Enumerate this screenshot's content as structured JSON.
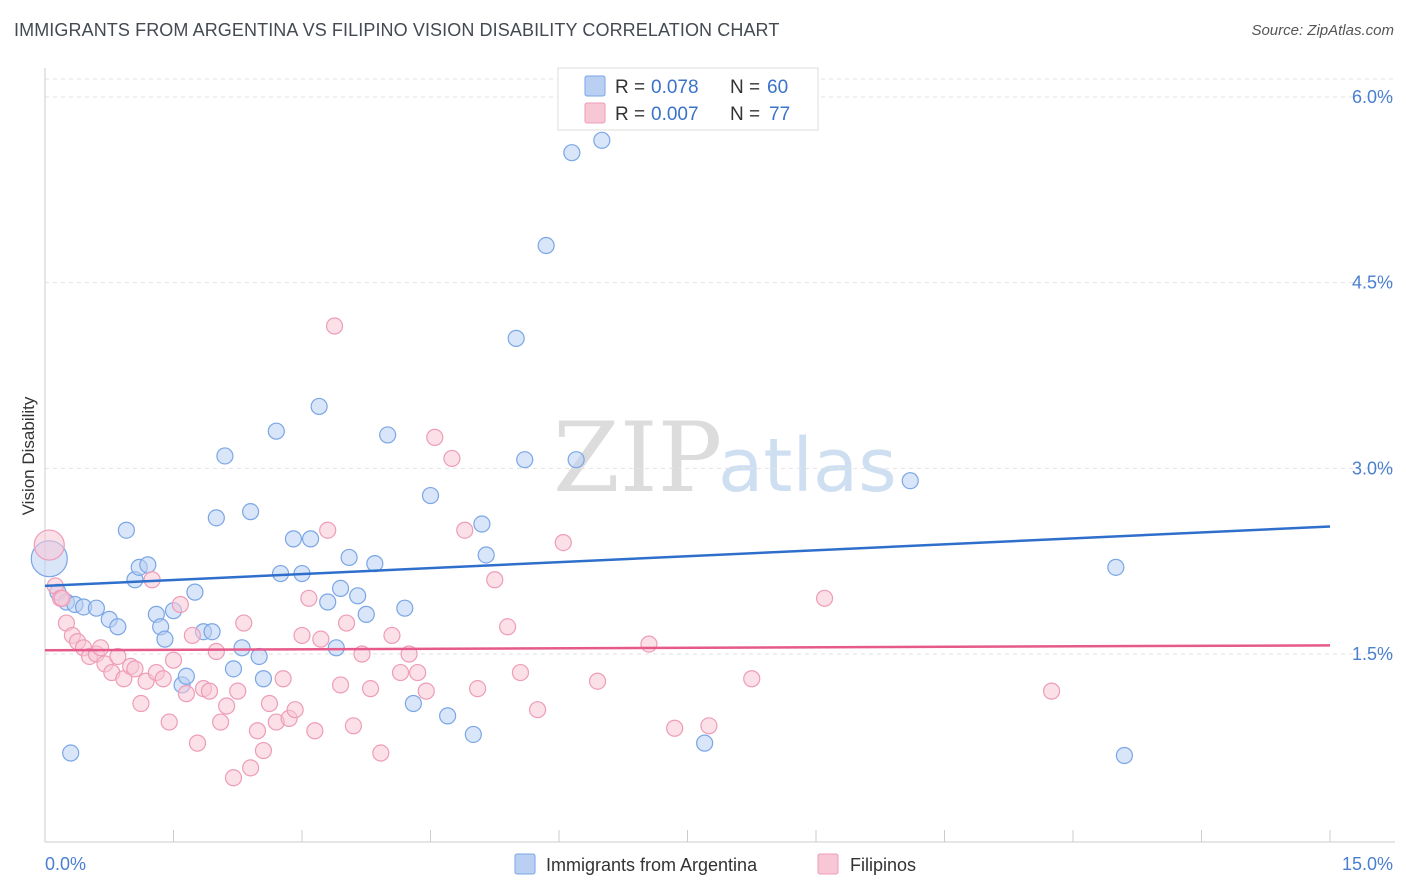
{
  "title": "IMMIGRANTS FROM ARGENTINA VS FILIPINO VISION DISABILITY CORRELATION CHART",
  "source": "Source: ZipAtlas.com",
  "watermark": {
    "zip": "ZIP",
    "atlas": "atlas"
  },
  "chart_data": {
    "type": "scatter",
    "title": "IMMIGRANTS FROM ARGENTINA VS FILIPINO VISION DISABILITY CORRELATION CHART",
    "xlabel": "",
    "ylabel": "Vision Disability",
    "xlim": [
      0,
      15
    ],
    "ylim": [
      0,
      6.2
    ],
    "x_tick_labels": [
      "0.0%",
      "15.0%"
    ],
    "y_ticks": [
      1.5,
      3.0,
      4.5,
      6.0
    ],
    "y_tick_labels": [
      "1.5%",
      "3.0%",
      "4.5%",
      "6.0%"
    ],
    "legend_position": "top-center",
    "series": [
      {
        "name": "Immigrants from Argentina",
        "color": "#7aa6e6",
        "fill": "#b9d0f3",
        "line_color": "#2f6fcc",
        "R": "0.078",
        "N": "60",
        "trend": {
          "x": [
            0,
            15
          ],
          "y": [
            2.05,
            2.53
          ]
        },
        "x": [
          0.05,
          0.15,
          0.25,
          0.35,
          0.45,
          0.6,
          0.75,
          0.85,
          0.95,
          1.05,
          1.1,
          1.2,
          1.3,
          1.35,
          1.4,
          1.5,
          1.6,
          1.65,
          1.75,
          1.85,
          1.95,
          2.0,
          2.1,
          2.2,
          2.3,
          2.4,
          2.5,
          2.55,
          2.7,
          2.75,
          2.9,
          3.0,
          3.1,
          3.2,
          3.3,
          3.4,
          3.45,
          3.55,
          3.65,
          3.75,
          3.85,
          4.0,
          4.2,
          4.3,
          4.5,
          4.7,
          5.0,
          5.1,
          5.15,
          5.5,
          5.6,
          5.85,
          6.15,
          6.2,
          6.5,
          7.7,
          10.1,
          12.5,
          12.6,
          0.3
        ],
        "y": [
          2.27,
          2.0,
          1.92,
          1.9,
          1.88,
          1.87,
          1.78,
          1.72,
          2.5,
          2.1,
          2.2,
          2.22,
          1.82,
          1.72,
          1.62,
          1.85,
          1.25,
          1.32,
          2.0,
          1.68,
          1.68,
          2.6,
          3.1,
          1.38,
          1.55,
          2.65,
          1.48,
          1.3,
          3.3,
          2.15,
          2.43,
          2.15,
          2.43,
          3.5,
          1.92,
          1.55,
          2.03,
          2.28,
          1.97,
          1.82,
          2.23,
          3.27,
          1.87,
          1.1,
          2.78,
          1.0,
          0.85,
          2.55,
          2.3,
          4.05,
          3.07,
          4.8,
          5.55,
          3.07,
          5.65,
          0.78,
          2.9,
          2.2,
          0.68,
          0.7
        ]
      },
      {
        "name": "Filipinos",
        "color": "#ee9cb7",
        "fill": "#f8c7d6",
        "line_color": "#e55a8a",
        "R": "0.007",
        "N": "77",
        "trend": {
          "x": [
            0,
            15
          ],
          "y": [
            1.53,
            1.57
          ]
        },
        "x": [
          0.05,
          0.12,
          0.18,
          0.25,
          0.32,
          0.38,
          0.45,
          0.52,
          0.6,
          0.65,
          0.7,
          0.78,
          0.85,
          0.92,
          1.0,
          1.05,
          1.12,
          1.18,
          1.25,
          1.3,
          1.38,
          1.45,
          1.5,
          1.58,
          1.65,
          1.72,
          1.78,
          1.85,
          1.92,
          2.0,
          2.05,
          2.12,
          2.2,
          2.25,
          2.32,
          2.4,
          2.48,
          2.55,
          2.62,
          2.7,
          2.78,
          2.85,
          2.92,
          3.0,
          3.08,
          3.15,
          3.22,
          3.3,
          3.38,
          3.45,
          3.52,
          3.6,
          3.7,
          3.8,
          3.92,
          4.05,
          4.15,
          4.25,
          4.35,
          4.45,
          4.55,
          4.75,
          4.9,
          5.05,
          5.25,
          5.4,
          5.55,
          5.75,
          6.05,
          6.45,
          7.05,
          7.35,
          7.75,
          8.25,
          9.1,
          11.75,
          0.2
        ],
        "y": [
          2.38,
          2.05,
          1.95,
          1.75,
          1.65,
          1.6,
          1.55,
          1.48,
          1.5,
          1.55,
          1.42,
          1.35,
          1.48,
          1.3,
          1.4,
          1.38,
          1.1,
          1.28,
          2.1,
          1.35,
          1.3,
          0.95,
          1.45,
          1.9,
          1.18,
          1.65,
          0.78,
          1.22,
          1.2,
          1.52,
          0.95,
          1.08,
          0.5,
          1.2,
          1.75,
          0.58,
          0.88,
          0.72,
          1.1,
          0.95,
          1.3,
          0.98,
          1.05,
          1.65,
          1.95,
          0.88,
          1.62,
          2.5,
          4.15,
          1.25,
          1.75,
          0.92,
          1.5,
          1.22,
          0.7,
          1.65,
          1.35,
          1.5,
          1.35,
          1.2,
          3.25,
          3.08,
          2.5,
          1.22,
          2.1,
          1.72,
          1.35,
          1.05,
          2.4,
          1.28,
          1.58,
          0.9,
          0.92,
          1.3,
          1.95,
          1.2,
          1.95
        ]
      }
    ]
  }
}
